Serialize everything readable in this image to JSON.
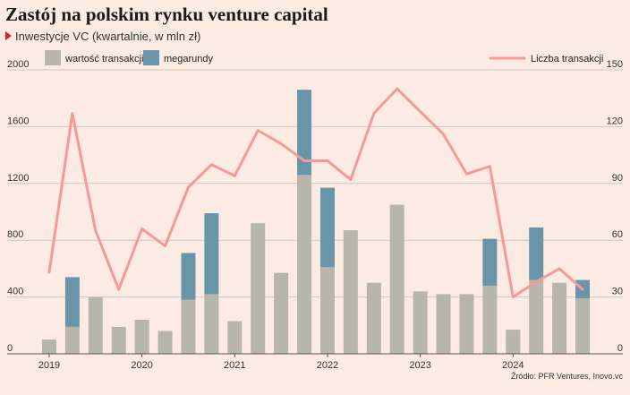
{
  "title": "Zastój na polskim rynku venture capital",
  "subtitle": "Inwestycje VC (kwartalnie, w mln zł)",
  "source": "Źródło: PFR Ventures, Inovo.vc",
  "colors": {
    "background": "#fbebe3",
    "wartosc": "#b8b5aa",
    "megarundy": "#6a95a8",
    "liczba": "#f59a98",
    "grid": "#cfc8c2",
    "marker": "#d81e2a"
  },
  "chart_data": {
    "type": "bar",
    "stacked": true,
    "legend_position": "top",
    "grid": true,
    "categories": [
      "2019 Q1",
      "2019 Q2",
      "2019 Q3",
      "2019 Q4",
      "2020 Q1",
      "2020 Q2",
      "2020 Q3",
      "2020 Q4",
      "2021 Q1",
      "2021 Q2",
      "2021 Q3",
      "2021 Q4",
      "2022 Q1",
      "2022 Q2",
      "2022 Q3",
      "2022 Q4",
      "2023 Q1",
      "2023 Q2",
      "2023 Q3",
      "2023 Q4",
      "2024 Q1",
      "2024 Q2",
      "2024 Q3",
      "2024 Q4"
    ],
    "x_tick_labels": [
      "2019",
      "2020",
      "2021",
      "2022",
      "2023",
      "2024"
    ],
    "y_left": {
      "ylim": [
        0,
        2000
      ],
      "ticks": [
        0,
        400,
        800,
        1200,
        1600,
        2000
      ]
    },
    "y_right": {
      "ylim": [
        0,
        150
      ],
      "ticks": [
        0,
        30,
        60,
        90,
        120,
        150
      ]
    },
    "series": [
      {
        "name": "wartość transakcji",
        "type": "bar",
        "axis": "left",
        "values": [
          100,
          190,
          400,
          190,
          240,
          160,
          380,
          420,
          230,
          920,
          570,
          1260,
          610,
          870,
          500,
          1050,
          440,
          420,
          420,
          480,
          170,
          520,
          500,
          390
        ]
      },
      {
        "name": "megarundy",
        "type": "bar",
        "axis": "left",
        "values": [
          0,
          350,
          0,
          0,
          0,
          0,
          330,
          570,
          0,
          0,
          0,
          600,
          560,
          0,
          0,
          0,
          0,
          0,
          0,
          330,
          0,
          370,
          0,
          130
        ]
      },
      {
        "name": "Liczba transakcji",
        "type": "line",
        "axis": "right",
        "values": [
          43,
          127,
          65,
          34,
          66,
          57,
          88,
          100,
          94,
          118,
          111,
          102,
          102,
          92,
          127,
          140,
          128,
          116,
          95,
          99,
          30,
          38,
          45,
          34
        ]
      }
    ]
  }
}
